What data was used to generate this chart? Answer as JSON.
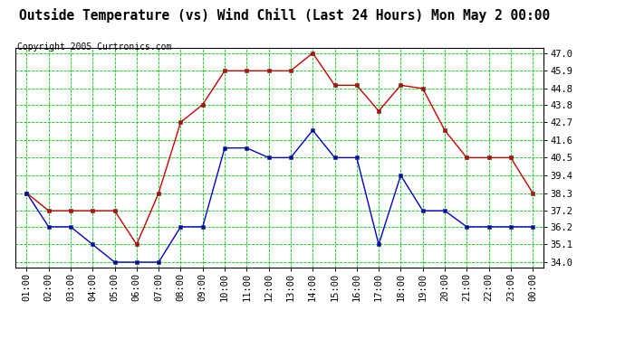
{
  "title": "Outside Temperature (vs) Wind Chill (Last 24 Hours) Mon May 2 00:00",
  "copyright": "Copyright 2005 Curtronics.com",
  "x_labels": [
    "01:00",
    "02:00",
    "03:00",
    "04:00",
    "05:00",
    "06:00",
    "07:00",
    "08:00",
    "09:00",
    "10:00",
    "11:00",
    "12:00",
    "13:00",
    "14:00",
    "15:00",
    "16:00",
    "17:00",
    "18:00",
    "19:00",
    "20:00",
    "21:00",
    "22:00",
    "23:00",
    "00:00"
  ],
  "red_data": [
    38.3,
    37.2,
    37.2,
    37.2,
    37.2,
    35.1,
    38.3,
    42.7,
    43.8,
    45.9,
    45.9,
    45.9,
    45.9,
    47.0,
    45.0,
    45.0,
    43.4,
    45.0,
    44.8,
    42.2,
    40.5,
    40.5,
    40.5,
    38.3
  ],
  "blue_data": [
    38.3,
    36.2,
    36.2,
    35.1,
    34.0,
    34.0,
    34.0,
    36.2,
    36.2,
    41.1,
    41.1,
    40.5,
    40.5,
    42.2,
    40.5,
    40.5,
    35.1,
    39.4,
    37.2,
    37.2,
    36.2,
    36.2,
    36.2,
    36.2
  ],
  "yticks": [
    34.0,
    35.1,
    36.2,
    37.2,
    38.3,
    39.4,
    40.5,
    41.6,
    42.7,
    43.8,
    44.8,
    45.9,
    47.0
  ],
  "ylim_min": 33.65,
  "ylim_max": 47.35,
  "red_color": "#cc0000",
  "blue_color": "#0000cc",
  "grid_color": "#00cc00",
  "bg_color": "#ffffff",
  "title_fontsize": 10.5,
  "copyright_fontsize": 7.0,
  "tick_fontsize": 7.5,
  "ytick_fontsize": 7.5
}
